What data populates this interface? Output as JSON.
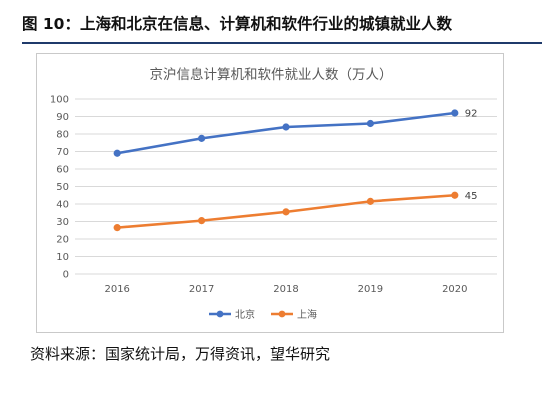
{
  "figure_title": "图 10：上海和北京在信息、计算机和软件行业的城镇就业人数",
  "source_note": "资料来源：国家统计局，万得资讯，望华研究",
  "chart_data": {
    "type": "line",
    "title": "京沪信息计算机和软件就业人数（万人）",
    "xlabel": "",
    "ylabel": "",
    "x": [
      "2016",
      "2017",
      "2018",
      "2019",
      "2020"
    ],
    "ylim": [
      0,
      100
    ],
    "yticks": [
      "0",
      "10",
      "20",
      "30",
      "40",
      "50",
      "60",
      "70",
      "80",
      "90",
      "100"
    ],
    "grid": true,
    "legend_position": "bottom",
    "series": [
      {
        "name": "北京",
        "color": "#4472c4",
        "values": [
          69,
          77.5,
          84,
          86,
          92
        ],
        "end_label": "92"
      },
      {
        "name": "上海",
        "color": "#ed7d31",
        "values": [
          26.5,
          30.5,
          35.5,
          41.5,
          45
        ],
        "end_label": "45"
      }
    ]
  }
}
